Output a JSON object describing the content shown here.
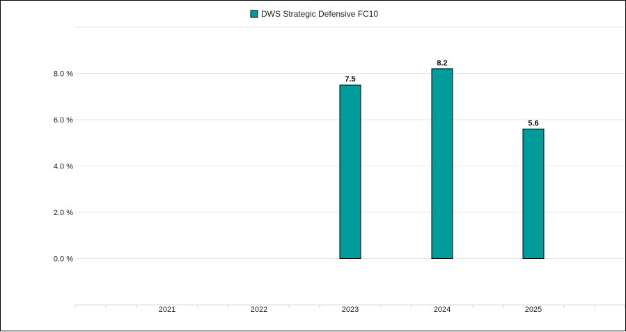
{
  "chart_data": {
    "type": "bar",
    "categories": [
      "2021",
      "2022",
      "2023",
      "2024",
      "2025"
    ],
    "series": [
      {
        "name": "DWS Strategic Defensive FC10",
        "values": [
          null,
          null,
          7.5,
          8.2,
          5.6
        ],
        "color": "#009b9b"
      }
    ],
    "data_labels": [
      "",
      "",
      "7.5",
      "8.2",
      "5.6"
    ],
    "y_ticks": [
      "0.0 %",
      "2.0 %",
      "4.0 %",
      "6.0 %",
      "8.0 %"
    ],
    "y_tick_values": [
      0,
      2,
      4,
      6,
      8
    ],
    "ylim": [
      -2,
      10
    ],
    "grid": true,
    "legend_position": "top-center"
  }
}
